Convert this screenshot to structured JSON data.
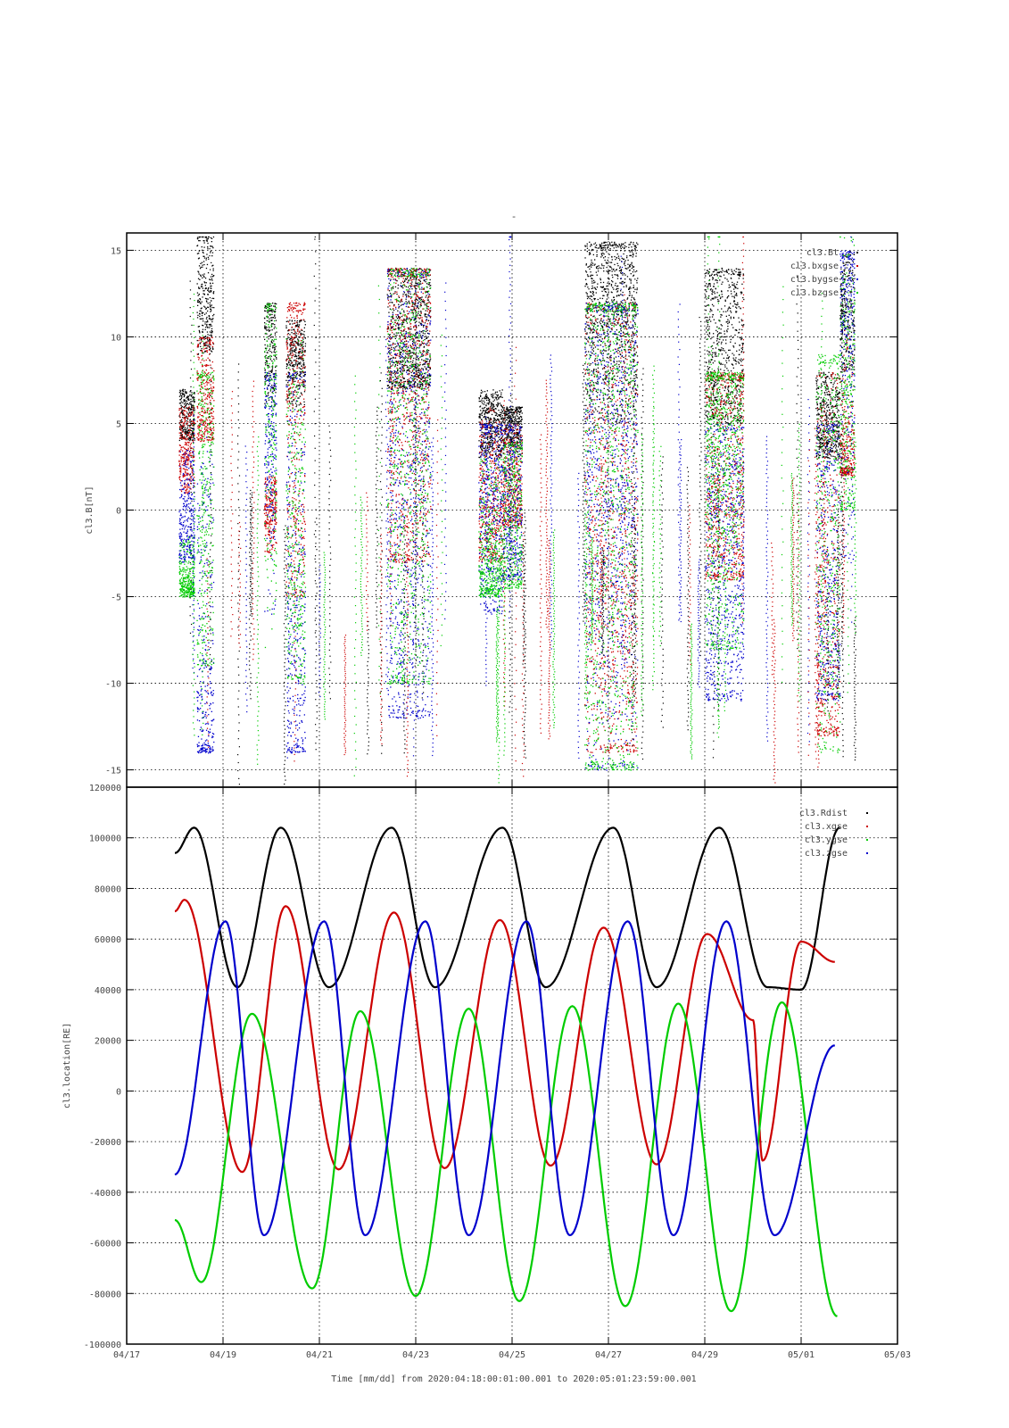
{
  "figure": {
    "title": "-",
    "xlabel": "Time [mm/dd]  from 2020:04:18:00:01:00.001  to  2020:05:01:23:59:00.001"
  },
  "chart_data": [
    {
      "type": "scatter",
      "panel": "top",
      "title": "",
      "ylabel": "cl3.B[nT]",
      "xlabel": "",
      "x_unit": "days since 04/17 00:00",
      "xlim": [
        "04/17",
        "05/03"
      ],
      "ylim": [
        -16,
        16
      ],
      "yticks": [
        -15,
        -10,
        -5,
        0,
        5,
        10,
        15
      ],
      "grid": true,
      "legend": "top-right",
      "legend_entries": [
        {
          "name": "cl3.Bt",
          "color": "#000000"
        },
        {
          "name": "cl3.bxgse",
          "color": "#cc0000"
        },
        {
          "name": "cl3.bygse",
          "color": "#0000cc"
        },
        {
          "name": "cl3.bzgse",
          "color": "#00cc00"
        }
      ],
      "bursts": [
        {
          "x0": 1.08,
          "x1": 1.4,
          "Bt": [
            4.0,
            7.0
          ],
          "bx": [
            1.0,
            6.0
          ],
          "by": [
            -3.0,
            3.5
          ],
          "bz": [
            -5.0,
            -1.5
          ]
        },
        {
          "x0": 1.45,
          "x1": 1.8,
          "Bt": [
            9.0,
            16.0
          ],
          "bx": [
            4.0,
            10.0
          ],
          "by": [
            -14.0,
            8.0
          ],
          "bz": [
            -9.0,
            8.0
          ]
        },
        {
          "x0": 2.85,
          "x1": 3.1,
          "Bt": [
            6.0,
            12.0
          ],
          "bx": [
            -3.0,
            2.0
          ],
          "by": [
            -6.0,
            8.0
          ],
          "bz": [
            -9.0,
            12.0
          ]
        },
        {
          "x0": 3.3,
          "x1": 3.7,
          "Bt": [
            6.0,
            11.0
          ],
          "bx": [
            -5.0,
            12.0
          ],
          "by": [
            -14.0,
            8.0
          ],
          "bz": [
            -10.0,
            10.0
          ]
        },
        {
          "x0": 5.4,
          "x1": 6.3,
          "Bt": [
            7.0,
            14.0
          ],
          "bx": [
            -3.0,
            14.0
          ],
          "by": [
            -12.0,
            14.0
          ],
          "bz": [
            -10.0,
            14.0
          ]
        },
        {
          "x0": 7.3,
          "x1": 7.8,
          "Bt": [
            3.0,
            7.0
          ],
          "bx": [
            -3.0,
            6.0
          ],
          "by": [
            -6.0,
            5.0
          ],
          "bz": [
            -5.0,
            3.0
          ]
        },
        {
          "x0": 7.8,
          "x1": 8.2,
          "Bt": [
            3.0,
            6.0
          ],
          "bx": [
            -1.0,
            5.0
          ],
          "by": [
            -4.0,
            5.0
          ],
          "bz": [
            -4.5,
            4.0
          ]
        },
        {
          "x0": 9.5,
          "x1": 10.6,
          "Bt": [
            5.0,
            15.5
          ],
          "bx": [
            -14.0,
            12.0
          ],
          "by": [
            -15.0,
            12.0
          ],
          "bz": [
            -15.0,
            12.0
          ]
        },
        {
          "x0": 12.0,
          "x1": 12.8,
          "Bt": [
            5.0,
            14.0
          ],
          "bx": [
            -4.0,
            8.0
          ],
          "by": [
            -11.0,
            5.0
          ],
          "bz": [
            -8.0,
            8.0
          ]
        },
        {
          "x0": 14.3,
          "x1": 14.8,
          "Bt": [
            3.0,
            8.0
          ],
          "bx": [
            -13.0,
            8.0
          ],
          "by": [
            -11.0,
            5.0
          ],
          "bz": [
            -14.0,
            9.0
          ]
        },
        {
          "x0": 14.8,
          "x1": 15.1,
          "Bt": [
            8.0,
            15.0
          ],
          "bx": [
            2.0,
            13.0
          ],
          "by": [
            -3.0,
            15.0
          ],
          "bz": [
            0.0,
            16.0
          ]
        }
      ]
    },
    {
      "type": "line",
      "panel": "bottom",
      "title": "",
      "ylabel": "cl3.location[RE]",
      "xlabel": "",
      "xticks": [
        "04/17",
        "04/19",
        "04/21",
        "04/23",
        "04/25",
        "04/27",
        "04/29",
        "05/01",
        "05/03"
      ],
      "x_unit": "days since 04/17 00:00",
      "xlim": [
        0,
        16
      ],
      "ylim": [
        -100000,
        120000
      ],
      "yticks": [
        -100000,
        -80000,
        -60000,
        -40000,
        -20000,
        0,
        20000,
        40000,
        60000,
        80000,
        100000,
        120000
      ],
      "grid": true,
      "legend": "top-right",
      "series": [
        {
          "name": "cl3.Rdist",
          "color": "#000000",
          "x": [
            1.0,
            1.4,
            2.3,
            3.2,
            4.2,
            5.5,
            6.4,
            7.8,
            8.7,
            10.1,
            11.0,
            12.3,
            13.3,
            14.0,
            14.8
          ],
          "y": [
            94000,
            104000,
            41000,
            104000,
            41000,
            104000,
            41000,
            104000,
            41000,
            104000,
            41000,
            104000,
            41000,
            40000,
            104000
          ]
        },
        {
          "name": "cl3.xgse",
          "color": "#cc0000",
          "x": [
            1.0,
            1.2,
            2.4,
            3.3,
            4.4,
            5.55,
            6.6,
            7.75,
            8.8,
            9.9,
            11.0,
            12.05,
            13.0,
            13.2,
            14.0,
            14.7
          ],
          "y": [
            71000,
            75500,
            -32000,
            73000,
            -31000,
            70500,
            -30500,
            67500,
            -29500,
            64500,
            -29000,
            62000,
            28000,
            -27500,
            59000,
            51000
          ]
        },
        {
          "name": "cl3.ygse",
          "color": "#00cc00",
          "x": [
            1.0,
            1.55,
            2.6,
            3.85,
            4.85,
            6.0,
            7.1,
            8.15,
            9.25,
            10.35,
            11.45,
            12.55,
            13.6,
            14.75
          ],
          "y": [
            -51000,
            -75500,
            30500,
            -78000,
            31500,
            -81000,
            32500,
            -83000,
            33500,
            -85000,
            34500,
            -87000,
            35000,
            -89000
          ]
        },
        {
          "name": "cl3.zgse",
          "color": "#0000cc",
          "x": [
            1.0,
            2.05,
            2.85,
            4.1,
            4.95,
            6.2,
            7.1,
            8.3,
            9.2,
            10.4,
            11.35,
            12.45,
            13.45,
            14.7
          ],
          "y": [
            -33000,
            67000,
            -57000,
            67000,
            -57000,
            67000,
            -57000,
            67000,
            -57000,
            67000,
            -57000,
            67000,
            -57000,
            18000
          ]
        }
      ]
    }
  ]
}
